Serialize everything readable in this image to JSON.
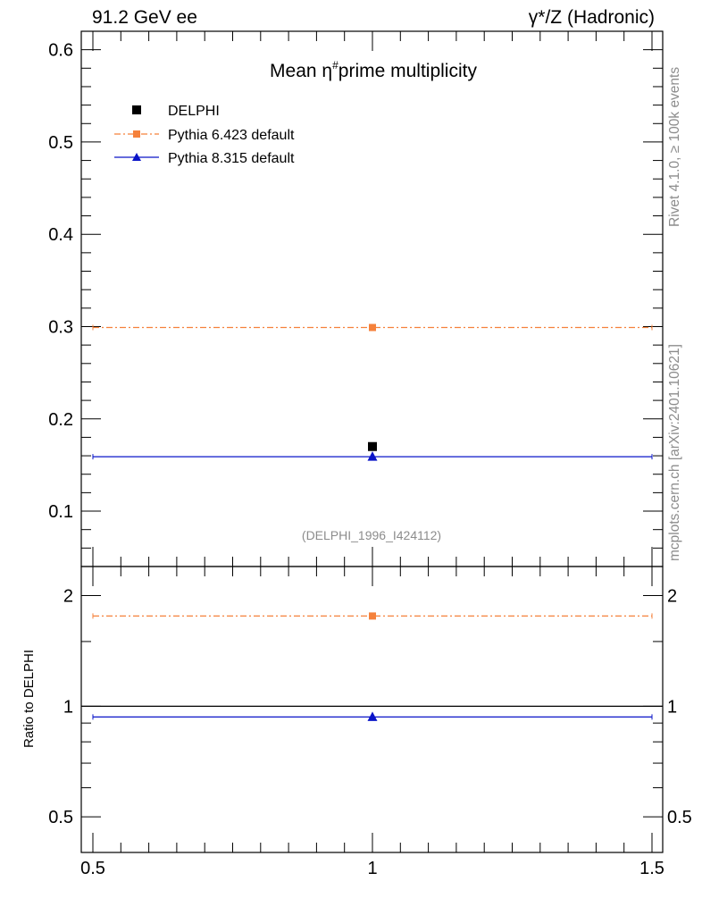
{
  "header": {
    "left": "91.2 GeV ee",
    "right": "γ*/Z (Hadronic)"
  },
  "side_labels": {
    "rivet": "Rivet 4.1.0, ≥ 100k events",
    "source": "mcplots.cern.ch [arXiv:2401.10621]"
  },
  "watermark": "(DELPHI_1996_I424112)",
  "colors": {
    "data": "#000000",
    "pythia6": "#f5813b",
    "pythia8": "#0a14c8",
    "axis": "#000000",
    "muted": "#8c8c8c"
  },
  "chart_data": [
    {
      "type": "scatter",
      "panel": "main",
      "title_prefix": "Mean η",
      "title_sup": "#",
      "title_suffix": "prime multiplicity",
      "xlim": [
        0.5,
        1.5
      ],
      "ylim": [
        0.04,
        0.62
      ],
      "yticks": [
        0.1,
        0.2,
        0.3,
        0.4,
        0.5,
        0.6
      ],
      "ytick_labels": [
        "0.1",
        "0.2",
        "0.3",
        "0.4",
        "0.5",
        "0.6"
      ],
      "legend_position": "top-left",
      "series": [
        {
          "name": "DELPHI",
          "label": "DELPHI",
          "kind": "data",
          "marker": "square",
          "x": [
            1.0
          ],
          "y": [
            0.17
          ]
        },
        {
          "name": "Pythia 6.423 default",
          "label": "Pythia 6.423 default",
          "kind": "mc",
          "marker": "square",
          "line": "dashdot",
          "x": [
            1.0
          ],
          "y": [
            0.299
          ]
        },
        {
          "name": "Pythia 8.315 default",
          "label": "Pythia 8.315 default",
          "kind": "mc",
          "marker": "triangle",
          "line": "solid",
          "x": [
            1.0
          ],
          "y": [
            0.159
          ]
        }
      ]
    },
    {
      "type": "scatter",
      "panel": "ratio",
      "ylabel": "Ratio to DELPHI",
      "xlim": [
        0.5,
        1.5
      ],
      "ylim": [
        0.4,
        2.4
      ],
      "yscale": "log",
      "xticks": [
        0.5,
        1.0,
        1.5
      ],
      "xtick_labels": [
        "0.5",
        "1",
        "1.5"
      ],
      "yticks": [
        0.5,
        1,
        2
      ],
      "ytick_labels": [
        "0.5",
        "1",
        "2"
      ],
      "reference_line": 1.0,
      "series": [
        {
          "name": "Pythia 6.423 default",
          "marker": "square",
          "line": "dashdot",
          "x": [
            1.0
          ],
          "y": [
            1.76
          ]
        },
        {
          "name": "Pythia 8.315 default",
          "marker": "triangle",
          "line": "solid",
          "x": [
            1.0
          ],
          "y": [
            0.935
          ]
        }
      ]
    }
  ]
}
